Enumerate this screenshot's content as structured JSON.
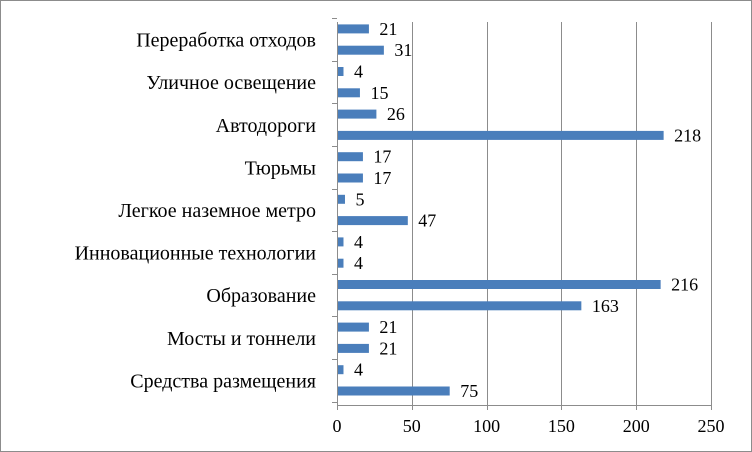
{
  "chart_data": {
    "type": "bar",
    "orientation": "horizontal",
    "title": "",
    "xlabel": "",
    "ylabel": "",
    "xlim": [
      0,
      250
    ],
    "xticks": [
      0,
      50,
      100,
      150,
      200,
      250
    ],
    "grid": "vertical",
    "legend": "none",
    "bar_color": "#4a7ebb",
    "categories": [
      "Средства размещения",
      "Мосты и тоннели",
      "Образование",
      "Инновационные технологии",
      "Легкое наземное метро",
      "Тюрьмы",
      "Автодороги",
      "Уличное освещение",
      "Переработка отходов"
    ],
    "bars": [
      {
        "category": "Средства размещения",
        "value": 75
      },
      {
        "category": "Средства размещения",
        "value": 4
      },
      {
        "category": "Мосты и тоннели",
        "value": 21
      },
      {
        "category": "Мосты и тоннели",
        "value": 21
      },
      {
        "category": "Образование",
        "value": 163
      },
      {
        "category": "Образование",
        "value": 216
      },
      {
        "category": "Инновационные технологии",
        "value": 4
      },
      {
        "category": "Инновационные технологии",
        "value": 4
      },
      {
        "category": "Легкое наземное метро",
        "value": 47
      },
      {
        "category": "Легкое наземное метро",
        "value": 5
      },
      {
        "category": "Тюрьмы",
        "value": 17
      },
      {
        "category": "Тюрьмы",
        "value": 17
      },
      {
        "category": "Автодороги",
        "value": 218
      },
      {
        "category": "Автодороги",
        "value": 26
      },
      {
        "category": "Уличное освещение",
        "value": 15
      },
      {
        "category": "Уличное освещение",
        "value": 4
      },
      {
        "category": "Переработка отходов",
        "value": 31
      },
      {
        "category": "Переработка отходов",
        "value": 21
      }
    ]
  }
}
